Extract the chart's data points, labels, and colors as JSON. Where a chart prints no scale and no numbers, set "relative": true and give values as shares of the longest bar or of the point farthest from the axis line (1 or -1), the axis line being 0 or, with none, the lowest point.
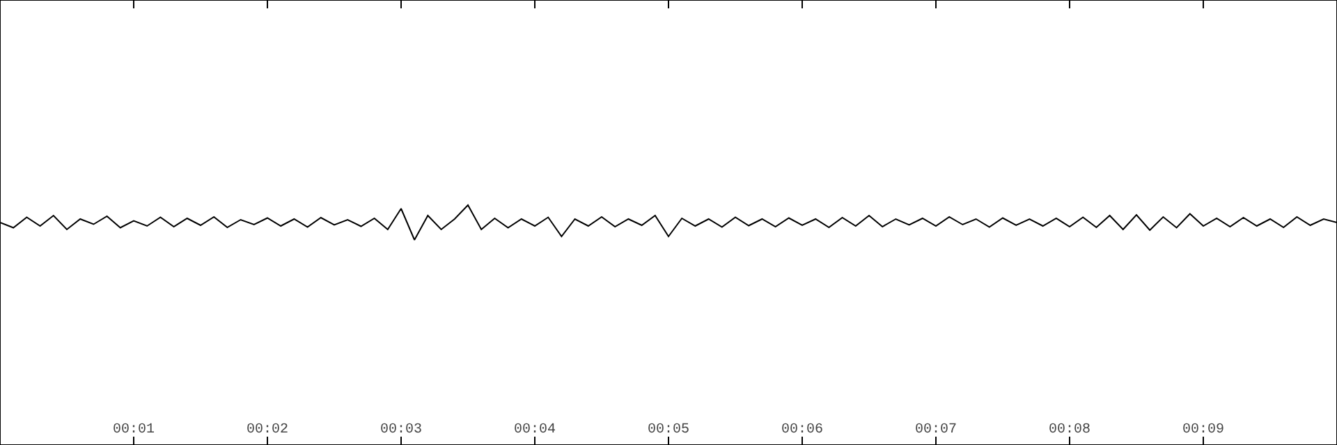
{
  "chart_data": {
    "type": "line",
    "relative": true,
    "color": "#000000",
    "legend": false,
    "marker": "none",
    "line_style": "solid",
    "tick_labels": "x",
    "xlim": [
      0,
      10
    ],
    "xticks": [
      {
        "value": 1,
        "label": "00:01"
      },
      {
        "value": 2,
        "label": "00:02"
      },
      {
        "value": 3,
        "label": "00:03"
      },
      {
        "value": 4,
        "label": "00:04"
      },
      {
        "value": 5,
        "label": "00:05"
      },
      {
        "value": 6,
        "label": "00:06"
      },
      {
        "value": 7,
        "label": "00:07"
      },
      {
        "value": 8,
        "label": "00:08"
      },
      {
        "value": 9,
        "label": "00:09"
      }
    ],
    "x": [
      0,
      0.1,
      0.2,
      0.3,
      0.4,
      0.5,
      0.6,
      0.7,
      0.8,
      0.9,
      1,
      1.1,
      1.2,
      1.3,
      1.4,
      1.5,
      1.6,
      1.7,
      1.8,
      1.9,
      2,
      2.1,
      2.2,
      2.3,
      2.4,
      2.5,
      2.6,
      2.7,
      2.8,
      2.9,
      3,
      3.1,
      3.2,
      3.3,
      3.4,
      3.5,
      3.6,
      3.7,
      3.8,
      3.9,
      4,
      4.1,
      4.2,
      4.3,
      4.4,
      4.5,
      4.6,
      4.7,
      4.8,
      4.9,
      5,
      5.1,
      5.2,
      5.3,
      5.4,
      5.5,
      5.6,
      5.7,
      5.8,
      5.9,
      6,
      6.1,
      6.2,
      6.3,
      6.4,
      6.5,
      6.6,
      6.7,
      6.8,
      6.9,
      7,
      7.1,
      7.2,
      7.3,
      7.4,
      7.5,
      7.6,
      7.7,
      7.8,
      7.9,
      8,
      8.1,
      8.2,
      8.3,
      8.4,
      8.5,
      8.6,
      8.7,
      8.8,
      8.9,
      9,
      9.1,
      9.2,
      9.3,
      9.4,
      9.5,
      9.6,
      9.7,
      9.8,
      9.9,
      10
    ],
    "values": [
      0.5,
      0.35,
      0.65,
      0.4,
      0.7,
      0.3,
      0.6,
      0.45,
      0.68,
      0.35,
      0.55,
      0.4,
      0.65,
      0.38,
      0.62,
      0.42,
      0.66,
      0.36,
      0.58,
      0.44,
      0.63,
      0.4,
      0.6,
      0.37,
      0.64,
      0.43,
      0.58,
      0.39,
      0.62,
      0.3,
      0.9,
      0.0,
      0.7,
      0.3,
      0.6,
      1.0,
      0.3,
      0.62,
      0.35,
      0.6,
      0.4,
      0.65,
      0.1,
      0.6,
      0.4,
      0.66,
      0.38,
      0.6,
      0.42,
      0.7,
      0.1,
      0.62,
      0.4,
      0.6,
      0.37,
      0.65,
      0.41,
      0.6,
      0.38,
      0.63,
      0.42,
      0.6,
      0.36,
      0.64,
      0.4,
      0.7,
      0.38,
      0.6,
      0.43,
      0.62,
      0.4,
      0.66,
      0.44,
      0.6,
      0.37,
      0.63,
      0.42,
      0.6,
      0.4,
      0.62,
      0.38,
      0.65,
      0.36,
      0.7,
      0.3,
      0.72,
      0.28,
      0.66,
      0.35,
      0.75,
      0.4,
      0.62,
      0.38,
      0.64,
      0.4,
      0.6,
      0.36,
      0.66,
      0.42,
      0.6,
      0.5
    ]
  }
}
